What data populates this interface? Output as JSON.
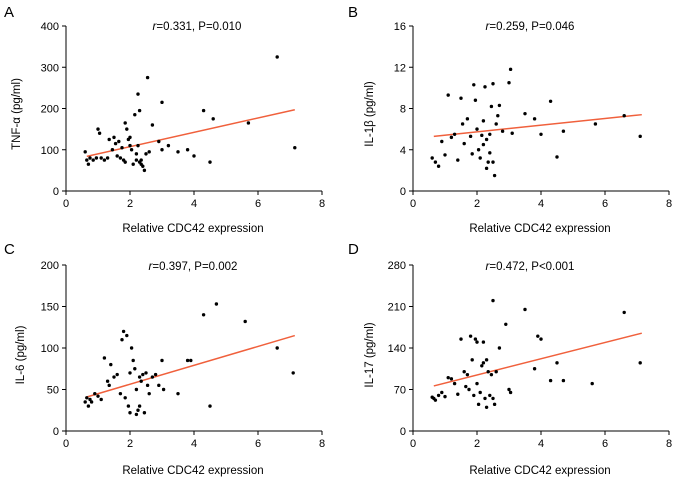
{
  "chart_data": [
    {
      "type": "scatter",
      "panel_label": "A",
      "annotation": {
        "r_symbol": "r",
        "rest": "=0.331, P=0.010"
      },
      "xlabel": "Relative CDC42 expression",
      "ylabel": "TNF-α (pg/ml)",
      "xlim": [
        0,
        8
      ],
      "ylim": [
        0,
        400
      ],
      "xticks": [
        0,
        2,
        4,
        6,
        8
      ],
      "yticks": [
        0,
        100,
        200,
        300,
        400
      ],
      "trend_color": "#f0603c",
      "trend": {
        "x": [
          0.65,
          7.15
        ],
        "y": [
          84,
          197
        ]
      },
      "points": {
        "x": [
          0.6,
          0.65,
          0.7,
          0.75,
          0.85,
          0.95,
          1.0,
          1.05,
          1.1,
          1.2,
          1.3,
          1.35,
          1.45,
          1.5,
          1.55,
          1.6,
          1.65,
          1.7,
          1.75,
          1.8,
          1.85,
          1.85,
          1.9,
          1.95,
          2.0,
          2.0,
          2.05,
          2.1,
          2.15,
          2.2,
          2.2,
          2.25,
          2.25,
          2.3,
          2.3,
          2.35,
          2.35,
          2.4,
          2.45,
          2.5,
          2.55,
          2.6,
          2.7,
          2.9,
          3.0,
          3.0,
          3.2,
          3.5,
          3.8,
          4.0,
          4.3,
          4.5,
          4.6,
          5.7,
          6.6,
          7.15
        ],
        "y": [
          95,
          75,
          65,
          80,
          75,
          80,
          150,
          140,
          80,
          75,
          80,
          125,
          100,
          130,
          115,
          85,
          120,
          80,
          105,
          75,
          70,
          165,
          150,
          125,
          130,
          110,
          100,
          65,
          185,
          90,
          75,
          235,
          110,
          195,
          70,
          65,
          75,
          60,
          50,
          90,
          275,
          95,
          160,
          120,
          215,
          100,
          110,
          95,
          100,
          85,
          195,
          70,
          175,
          165,
          325,
          105
        ]
      }
    },
    {
      "type": "scatter",
      "panel_label": "B",
      "annotation": {
        "r_symbol": "r",
        "rest": "=0.259, P=0.046"
      },
      "xlabel": "Relative CDC42 expression",
      "ylabel": "IL-1β (pg/ml)",
      "xlim": [
        0,
        8
      ],
      "ylim": [
        0,
        16
      ],
      "xticks": [
        0,
        2,
        4,
        6,
        8
      ],
      "yticks": [
        0,
        4,
        8,
        12,
        16
      ],
      "trend_color": "#f0603c",
      "trend": {
        "x": [
          0.65,
          7.15
        ],
        "y": [
          5.3,
          7.4
        ]
      },
      "points": {
        "x": [
          0.6,
          0.7,
          0.8,
          0.9,
          1.0,
          1.1,
          1.2,
          1.3,
          1.4,
          1.5,
          1.55,
          1.6,
          1.7,
          1.8,
          1.85,
          1.9,
          1.95,
          2.0,
          2.05,
          2.1,
          2.15,
          2.2,
          2.2,
          2.25,
          2.3,
          2.3,
          2.35,
          2.4,
          2.4,
          2.45,
          2.5,
          2.5,
          2.55,
          2.6,
          2.65,
          2.7,
          2.8,
          3.0,
          3.05,
          3.1,
          3.5,
          3.8,
          4.0,
          4.3,
          4.5,
          4.7,
          5.7,
          6.6,
          7.1
        ],
        "y": [
          3.2,
          2.8,
          2.4,
          4.8,
          3.5,
          9.3,
          5.2,
          5.5,
          3.0,
          9.0,
          6.5,
          4.6,
          7.0,
          5.3,
          3.6,
          10.3,
          8.8,
          6.0,
          4.0,
          3.2,
          5.4,
          4.5,
          6.8,
          10.1,
          5.0,
          2.2,
          2.8,
          5.5,
          3.7,
          8.2,
          10.4,
          2.8,
          1.5,
          6.5,
          7.3,
          8.3,
          5.8,
          10.5,
          11.8,
          5.6,
          7.5,
          7.0,
          5.5,
          8.7,
          3.3,
          5.8,
          6.5,
          7.3,
          5.3
        ]
      }
    },
    {
      "type": "scatter",
      "panel_label": "C",
      "annotation": {
        "r_symbol": "r",
        "rest": "=0.397, P=0.002"
      },
      "xlabel": "Relative CDC42 expression",
      "ylabel": "IL-6 (pg/ml)",
      "xlim": [
        0,
        8
      ],
      "ylim": [
        0,
        200
      ],
      "xticks": [
        0,
        2,
        4,
        6,
        8
      ],
      "yticks": [
        0,
        50,
        100,
        150,
        200
      ],
      "trend_color": "#f0603c",
      "trend": {
        "x": [
          0.65,
          7.15
        ],
        "y": [
          41,
          115
        ]
      },
      "points": {
        "x": [
          0.6,
          0.65,
          0.7,
          0.75,
          0.8,
          0.9,
          1.0,
          1.1,
          1.2,
          1.3,
          1.35,
          1.4,
          1.5,
          1.6,
          1.7,
          1.75,
          1.8,
          1.85,
          1.9,
          1.95,
          2.0,
          2.0,
          2.05,
          2.1,
          2.15,
          2.2,
          2.2,
          2.25,
          2.3,
          2.3,
          2.35,
          2.4,
          2.45,
          2.5,
          2.55,
          2.6,
          2.7,
          2.8,
          2.9,
          3.0,
          3.05,
          3.5,
          3.8,
          3.9,
          4.3,
          4.5,
          4.7,
          5.6,
          6.6,
          7.1
        ],
        "y": [
          35,
          40,
          30,
          38,
          35,
          45,
          42,
          38,
          88,
          60,
          55,
          80,
          65,
          68,
          45,
          110,
          120,
          40,
          115,
          30,
          22,
          70,
          100,
          85,
          75,
          20,
          50,
          25,
          65,
          30,
          60,
          68,
          22,
          70,
          55,
          45,
          65,
          68,
          55,
          85,
          50,
          45,
          85,
          85,
          140,
          30,
          153,
          132,
          100,
          70
        ]
      }
    },
    {
      "type": "scatter",
      "panel_label": "D",
      "annotation": {
        "r_symbol": "r",
        "rest": "=0.472, P<0.001"
      },
      "xlabel": "Relative CDC42 expression",
      "ylabel": "IL-17 (pg/ml)",
      "xlim": [
        0,
        8
      ],
      "ylim": [
        0,
        280
      ],
      "xticks": [
        0,
        2,
        4,
        6,
        8
      ],
      "yticks": [
        0,
        70,
        140,
        210,
        280
      ],
      "trend_color": "#f0603c",
      "trend": {
        "x": [
          0.65,
          7.15
        ],
        "y": [
          76,
          165
        ]
      },
      "points": {
        "x": [
          0.6,
          0.65,
          0.7,
          0.8,
          0.9,
          1.0,
          1.1,
          1.2,
          1.3,
          1.4,
          1.5,
          1.6,
          1.65,
          1.7,
          1.75,
          1.8,
          1.85,
          1.9,
          1.95,
          2.0,
          2.0,
          2.05,
          2.1,
          2.15,
          2.2,
          2.2,
          2.25,
          2.3,
          2.3,
          2.35,
          2.4,
          2.45,
          2.5,
          2.5,
          2.55,
          2.6,
          2.7,
          2.9,
          3.0,
          3.05,
          3.5,
          3.8,
          3.9,
          4.0,
          4.3,
          4.5,
          4.7,
          5.6,
          6.6,
          7.1
        ],
        "y": [
          57,
          55,
          52,
          60,
          65,
          58,
          90,
          88,
          80,
          62,
          155,
          100,
          75,
          95,
          70,
          160,
          120,
          60,
          155,
          80,
          150,
          45,
          65,
          110,
          150,
          115,
          55,
          120,
          40,
          100,
          60,
          95,
          55,
          220,
          45,
          100,
          140,
          180,
          70,
          65,
          205,
          105,
          160,
          155,
          85,
          115,
          85,
          80,
          200,
          115
        ]
      }
    }
  ]
}
